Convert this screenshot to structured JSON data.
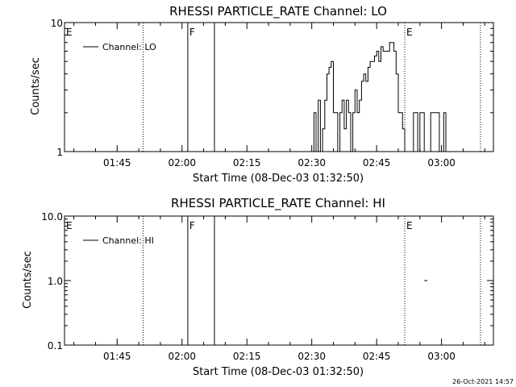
{
  "footer_timestamp": "26-Oct-2021 14:57",
  "colors": {
    "background": "#ffffff",
    "foreground": "#000000"
  },
  "chart_data": [
    {
      "type": "line",
      "title": "RHESSI PARTICLE_RATE Channel: LO",
      "xlabel": "Start Time (08-Dec-03 01:32:50)",
      "ylabel": "Counts/sec",
      "y_scale": "log",
      "ylim": [
        1,
        10
      ],
      "y_ticks": [
        {
          "value": 1,
          "label": "1"
        },
        {
          "value": 10,
          "label": "10"
        }
      ],
      "xlim": [
        "01:32:50",
        "03:12:00"
      ],
      "x_ticks": [
        "01:45",
        "02:00",
        "02:15",
        "02:30",
        "02:45",
        "03:00"
      ],
      "legend": {
        "label": "Channel: LO",
        "position": "top-left"
      },
      "grid": false,
      "markers": [
        {
          "time": "01:33:00",
          "label": "E",
          "style": "none"
        },
        {
          "time": "01:51:00",
          "label": "",
          "style": "dotted"
        },
        {
          "time": "02:01:20",
          "label": "F",
          "style": "solid"
        },
        {
          "time": "02:07:30",
          "label": "",
          "style": "solid"
        },
        {
          "time": "02:51:30",
          "label": "E",
          "style": "dotted"
        },
        {
          "time": "03:09:00",
          "label": "",
          "style": "dotted"
        }
      ],
      "series": [
        {
          "name": "Channel: LO",
          "points": [
            [
              "02:30:00",
              1
            ],
            [
              "02:30:30",
              2
            ],
            [
              "02:31:00",
              1
            ],
            [
              "02:31:30",
              2.5
            ],
            [
              "02:32:00",
              1
            ],
            [
              "02:32:30",
              1.5
            ],
            [
              "02:33:00",
              2.5
            ],
            [
              "02:33:30",
              4
            ],
            [
              "02:34:00",
              4.5
            ],
            [
              "02:34:30",
              5
            ],
            [
              "02:35:00",
              2
            ],
            [
              "02:35:30",
              2
            ],
            [
              "02:36:00",
              1
            ],
            [
              "02:36:30",
              2
            ],
            [
              "02:37:00",
              2.5
            ],
            [
              "02:37:30",
              1.5
            ],
            [
              "02:38:00",
              2.5
            ],
            [
              "02:38:30",
              2
            ],
            [
              "02:39:00",
              1
            ],
            [
              "02:39:30",
              2
            ],
            [
              "02:40:00",
              3
            ],
            [
              "02:40:30",
              2
            ],
            [
              "02:41:00",
              2.5
            ],
            [
              "02:41:30",
              3.5
            ],
            [
              "02:42:00",
              4
            ],
            [
              "02:42:30",
              3.5
            ],
            [
              "02:43:00",
              4.5
            ],
            [
              "02:43:30",
              5
            ],
            [
              "02:44:00",
              5
            ],
            [
              "02:44:30",
              5.5
            ],
            [
              "02:45:00",
              6
            ],
            [
              "02:45:30",
              5
            ],
            [
              "02:46:00",
              6.5
            ],
            [
              "02:46:30",
              6
            ],
            [
              "02:47:00",
              6
            ],
            [
              "02:47:30",
              6
            ],
            [
              "02:48:00",
              7
            ],
            [
              "02:48:30",
              7
            ],
            [
              "02:49:00",
              6
            ],
            [
              "02:49:30",
              4
            ],
            [
              "02:50:00",
              2
            ],
            [
              "02:50:30",
              2
            ],
            [
              "02:51:00",
              1.5
            ],
            [
              "02:51:30",
              1
            ],
            [
              "02:52:00",
              1
            ],
            [
              "02:52:30",
              1
            ],
            [
              "02:53:00",
              1
            ],
            [
              "02:53:30",
              2
            ],
            [
              "02:54:00",
              2
            ],
            [
              "02:54:30",
              1
            ],
            [
              "02:55:00",
              2
            ],
            [
              "02:55:30",
              2
            ],
            [
              "02:56:00",
              1
            ],
            [
              "02:56:30",
              1
            ],
            [
              "02:57:00",
              1
            ],
            [
              "02:57:30",
              2
            ],
            [
              "02:58:00",
              2
            ],
            [
              "02:58:30",
              2
            ],
            [
              "02:59:00",
              2
            ],
            [
              "02:59:30",
              1
            ],
            [
              "03:00:00",
              1
            ],
            [
              "03:00:30",
              2
            ],
            [
              "03:01:00",
              1
            ]
          ]
        }
      ]
    },
    {
      "type": "line",
      "title": "RHESSI PARTICLE_RATE Channel: HI",
      "xlabel": "Start Time (08-Dec-03 01:32:50)",
      "ylabel": "Counts/sec",
      "y_scale": "log",
      "ylim": [
        0.1,
        10
      ],
      "y_ticks": [
        {
          "value": 0.1,
          "label": "0.1"
        },
        {
          "value": 1,
          "label": "1.0"
        },
        {
          "value": 10,
          "label": "10.0"
        }
      ],
      "xlim": [
        "01:32:50",
        "03:12:00"
      ],
      "x_ticks": [
        "01:45",
        "02:00",
        "02:15",
        "02:30",
        "02:45",
        "03:00"
      ],
      "legend": {
        "label": "Channel: HI",
        "position": "top-left"
      },
      "grid": false,
      "markers": [
        {
          "time": "01:33:00",
          "label": "E",
          "style": "none"
        },
        {
          "time": "01:51:00",
          "label": "",
          "style": "dotted"
        },
        {
          "time": "02:01:20",
          "label": "F",
          "style": "solid"
        },
        {
          "time": "02:07:30",
          "label": "",
          "style": "solid"
        },
        {
          "time": "02:51:30",
          "label": "E",
          "style": "dotted"
        },
        {
          "time": "03:09:00",
          "label": "",
          "style": "dotted"
        }
      ],
      "series": [
        {
          "name": "Channel: HI",
          "segments": [
            [
              [
                "02:56:00",
                1
              ],
              [
                "02:56:45",
                1
              ]
            ]
          ]
        }
      ]
    }
  ]
}
